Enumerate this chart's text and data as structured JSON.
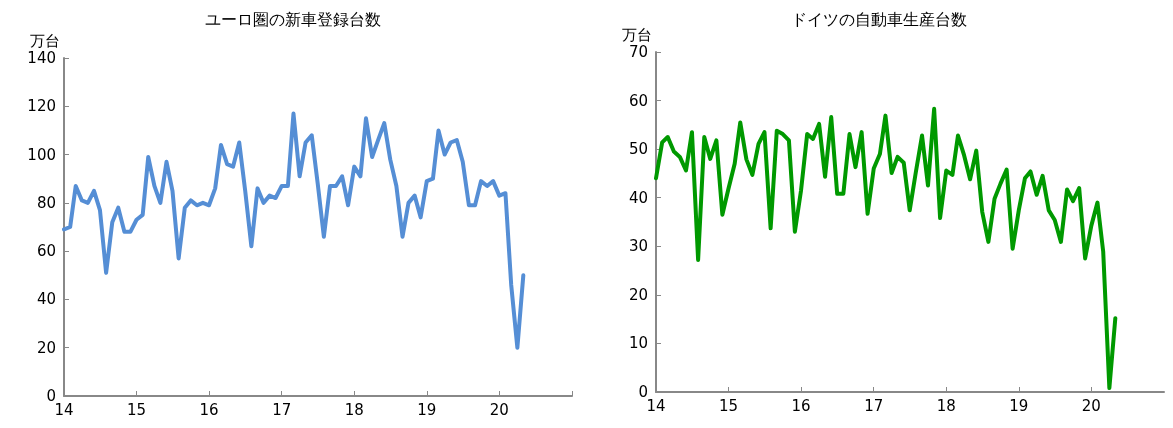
{
  "chart_data": [
    {
      "type": "line",
      "title": "ユーロ圏の新車登録台数",
      "ylabel": "万台",
      "grid": false,
      "marker": "none",
      "line_style": "solid",
      "x": [
        "2014-01",
        "2014-02",
        "2014-03",
        "2014-04",
        "2014-05",
        "2014-06",
        "2014-07",
        "2014-08",
        "2014-09",
        "2014-10",
        "2014-11",
        "2014-12",
        "2015-01",
        "2015-02",
        "2015-03",
        "2015-04",
        "2015-05",
        "2015-06",
        "2015-07",
        "2015-08",
        "2015-09",
        "2015-10",
        "2015-11",
        "2015-12",
        "2016-01",
        "2016-02",
        "2016-03",
        "2016-04",
        "2016-05",
        "2016-06",
        "2016-07",
        "2016-08",
        "2016-09",
        "2016-10",
        "2016-11",
        "2016-12",
        "2017-01",
        "2017-02",
        "2017-03",
        "2017-04",
        "2017-05",
        "2017-06",
        "2017-07",
        "2017-08",
        "2017-09",
        "2017-10",
        "2017-11",
        "2017-12",
        "2018-01",
        "2018-02",
        "2018-03",
        "2018-04",
        "2018-05",
        "2018-06",
        "2018-07",
        "2018-08",
        "2018-09",
        "2018-10",
        "2018-11",
        "2018-12",
        "2019-01",
        "2019-02",
        "2019-03",
        "2019-04",
        "2019-05",
        "2019-06",
        "2019-07",
        "2019-08",
        "2019-09",
        "2019-10",
        "2019-11",
        "2019-12",
        "2020-01",
        "2020-02",
        "2020-03",
        "2020-04",
        "2020-05"
      ],
      "series": [
        {
          "color": "#558ed5",
          "values": [
            69,
            70,
            87,
            81,
            80,
            85,
            77,
            51,
            72,
            78,
            68,
            68,
            73,
            75,
            99,
            87,
            80,
            97,
            85,
            57,
            78,
            81,
            79,
            80,
            79,
            86,
            104,
            96,
            95,
            105,
            85,
            62,
            86,
            80,
            83,
            82,
            87,
            87,
            117,
            91,
            105,
            108,
            88,
            66,
            87,
            87,
            91,
            79,
            95,
            91,
            115,
            99,
            106,
            113,
            98,
            87,
            66,
            80,
            83,
            74,
            89,
            90,
            110,
            100,
            105,
            106,
            97,
            79,
            79,
            89,
            87,
            89,
            83,
            84,
            46,
            20,
            50
          ]
        }
      ],
      "xlim": [
        "2014-01",
        "2021-01"
      ],
      "xticks": [
        {
          "value": "2014-01",
          "label": "14"
        },
        {
          "value": "2015-01",
          "label": "15"
        },
        {
          "value": "2016-01",
          "label": "16"
        },
        {
          "value": "2017-01",
          "label": "17"
        },
        {
          "value": "2018-01",
          "label": "18"
        },
        {
          "value": "2019-01",
          "label": "19"
        },
        {
          "value": "2020-01",
          "label": "20"
        },
        {
          "value": "2021-01",
          "label": null
        }
      ],
      "ylim": [
        0,
        140
      ],
      "yticks": [
        0,
        20,
        40,
        60,
        80,
        100,
        120,
        140
      ]
    },
    {
      "type": "line",
      "title": "ドイツの自動車生産台数",
      "ylabel": "万台",
      "grid": false,
      "marker": "none",
      "line_style": "solid",
      "x": [
        "2014-01",
        "2014-02",
        "2014-03",
        "2014-04",
        "2014-05",
        "2014-06",
        "2014-07",
        "2014-08",
        "2014-09",
        "2014-10",
        "2014-11",
        "2014-12",
        "2015-01",
        "2015-02",
        "2015-03",
        "2015-04",
        "2015-05",
        "2015-06",
        "2015-07",
        "2015-08",
        "2015-09",
        "2015-10",
        "2015-11",
        "2015-12",
        "2016-01",
        "2016-02",
        "2016-03",
        "2016-04",
        "2016-05",
        "2016-06",
        "2016-07",
        "2016-08",
        "2016-09",
        "2016-10",
        "2016-11",
        "2016-12",
        "2017-01",
        "2017-02",
        "2017-03",
        "2017-04",
        "2017-05",
        "2017-06",
        "2017-07",
        "2017-08",
        "2017-09",
        "2017-10",
        "2017-11",
        "2017-12",
        "2018-01",
        "2018-02",
        "2018-03",
        "2018-04",
        "2018-05",
        "2018-06",
        "2018-07",
        "2018-08",
        "2018-09",
        "2018-10",
        "2018-11",
        "2018-12",
        "2019-01",
        "2019-02",
        "2019-03",
        "2019-04",
        "2019-05",
        "2019-06",
        "2019-07",
        "2019-08",
        "2019-09",
        "2019-10",
        "2019-11",
        "2019-12",
        "2020-01",
        "2020-02",
        "2020-03",
        "2020-04",
        "2020-05"
      ],
      "series": [
        {
          "color": "#009900",
          "values": [
            44,
            51.4,
            52.5,
            49.5,
            48.4,
            45.6,
            53.5,
            27.2,
            52.5,
            48,
            51.8,
            36.5,
            41.9,
            47,
            55.5,
            47.9,
            44.7,
            51.1,
            53.5,
            33.7,
            53.8,
            53.1,
            51.8,
            33,
            41.5,
            53.1,
            52.1,
            55.2,
            44.3,
            56.6,
            40.8,
            40.8,
            53.1,
            46.3,
            53.5,
            36.7,
            46,
            49,
            56.9,
            45.1,
            48.4,
            47.2,
            37.4,
            45.3,
            52.8,
            42.5,
            58.3,
            35.8,
            45.6,
            44.7,
            52.8,
            48.7,
            43.8,
            49.7,
            37.1,
            30.9,
            39.8,
            42.9,
            45.8,
            29.5,
            37.4,
            44,
            45.4,
            40.6,
            44.5,
            37.4,
            35.4,
            30.9,
            41.7,
            39.3,
            42,
            27.5,
            34.2,
            39,
            28.9,
            0.8,
            15.2
          ]
        }
      ],
      "xlim": [
        "2014-01",
        "2021-01"
      ],
      "xticks": [
        {
          "value": "2014-01",
          "label": "14"
        },
        {
          "value": "2015-01",
          "label": "15"
        },
        {
          "value": "2016-01",
          "label": "16"
        },
        {
          "value": "2017-01",
          "label": "17"
        },
        {
          "value": "2018-01",
          "label": "18"
        },
        {
          "value": "2019-01",
          "label": "19"
        },
        {
          "value": "2020-01",
          "label": "20"
        }
      ],
      "ylim": [
        0,
        70
      ],
      "yticks": [
        0,
        10,
        20,
        30,
        40,
        50,
        60,
        70
      ]
    }
  ]
}
